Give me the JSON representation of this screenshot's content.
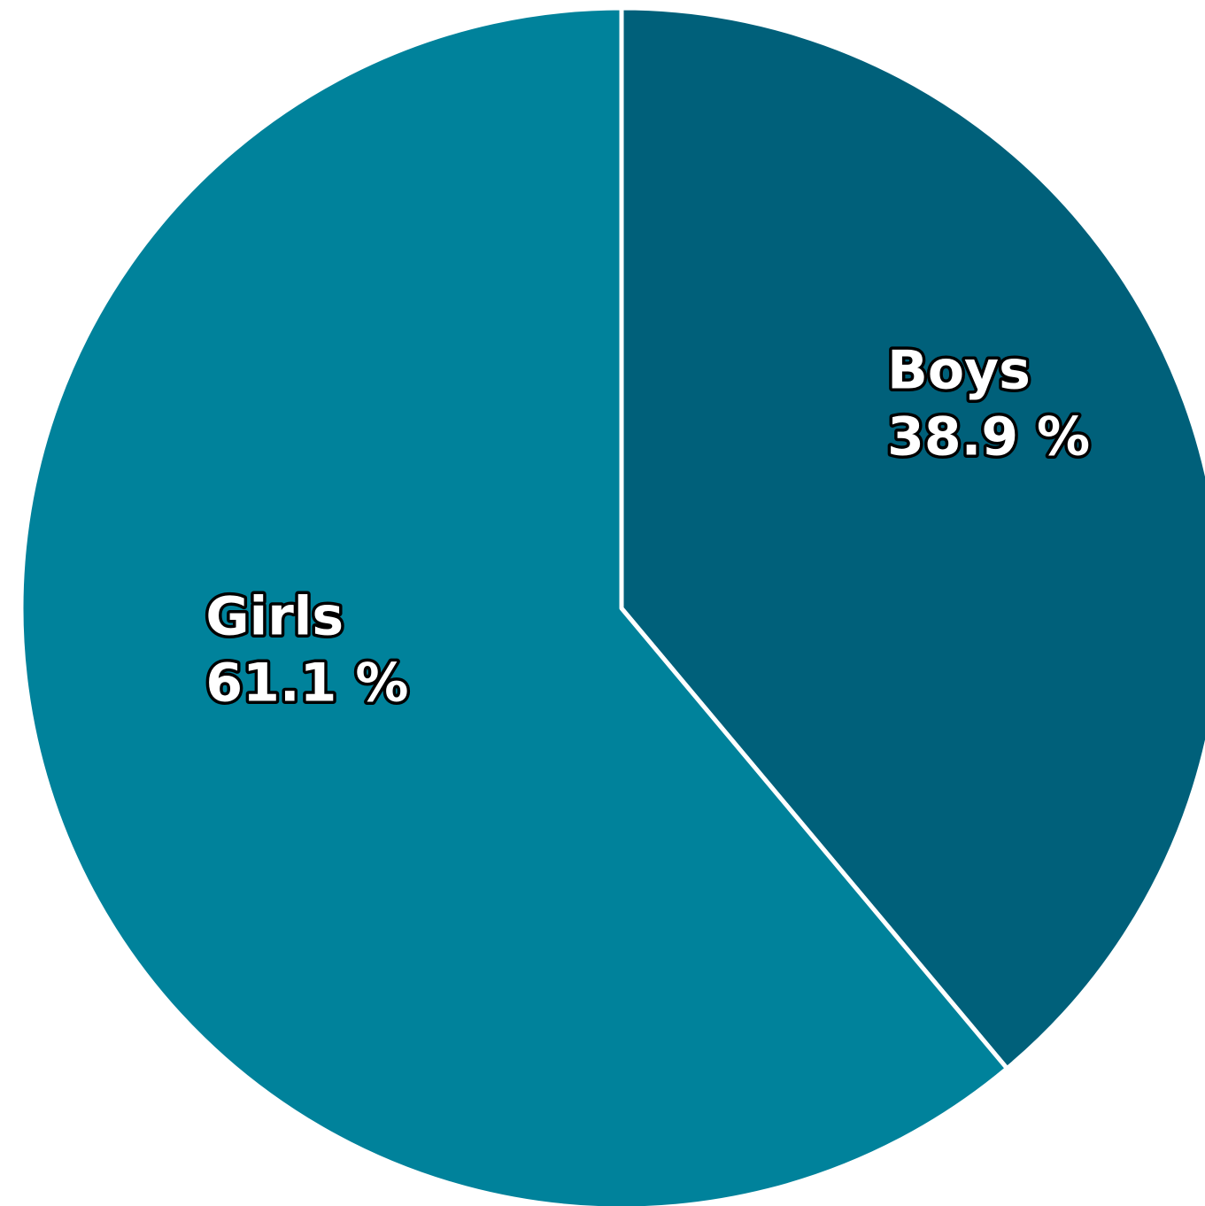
{
  "chart_data": {
    "type": "pie",
    "slices": [
      {
        "label": "Boys",
        "value": 38.9,
        "value_label": "38.9 %",
        "color": "#00607a"
      },
      {
        "label": "Girls",
        "value": 61.1,
        "value_label": "61.1 %",
        "color": "#00829b"
      }
    ],
    "start_angle": "12 o'clock",
    "direction": "clockwise",
    "legend": "none"
  }
}
